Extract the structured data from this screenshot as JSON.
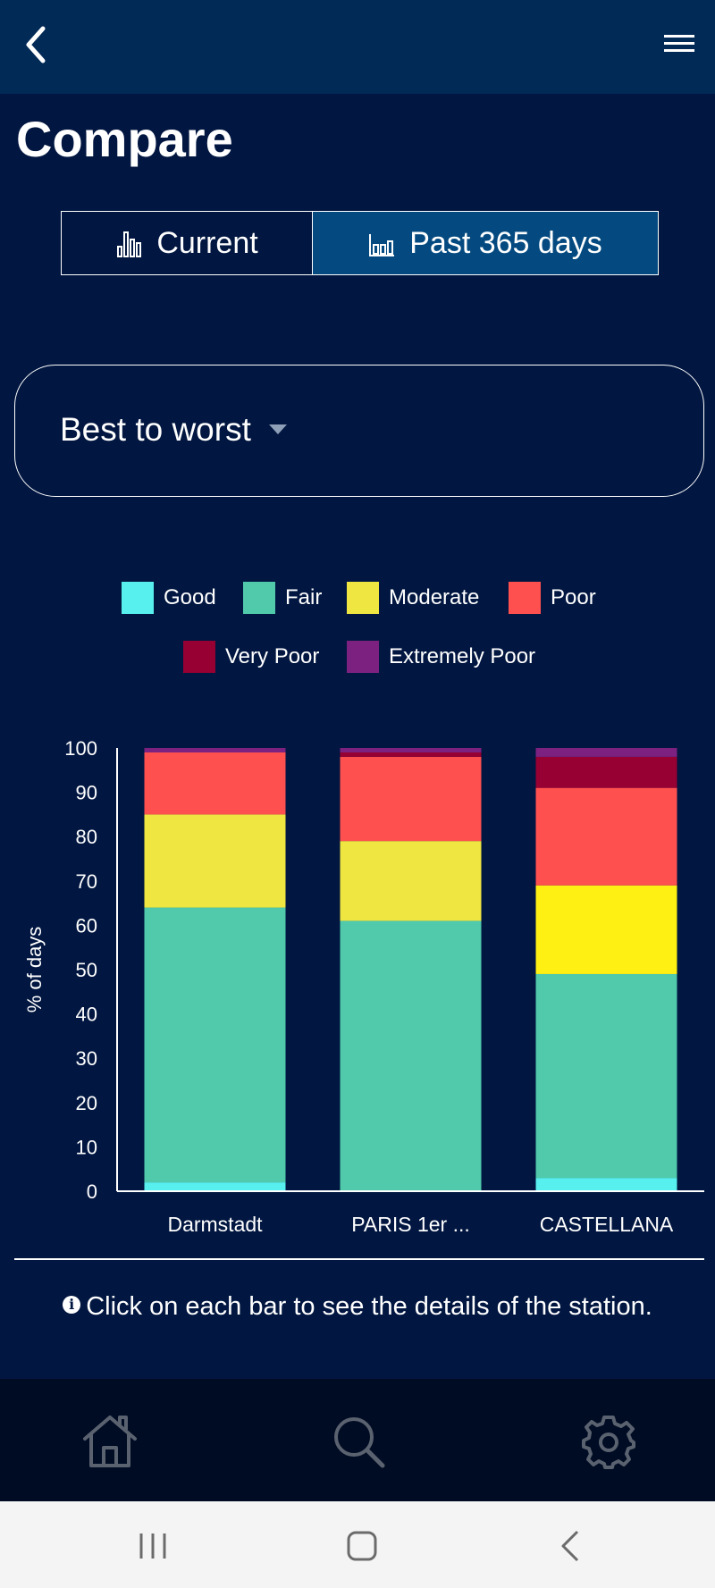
{
  "header": {
    "back_icon": "chevron-left-icon",
    "menu_icon": "hamburger-icon"
  },
  "page": {
    "title": "Compare"
  },
  "segmented_control": {
    "tabs": [
      {
        "label": "Current",
        "icon": "bar-chart-icon",
        "selected": false
      },
      {
        "label": "Past 365 days",
        "icon": "bar-chart-outline-icon",
        "selected": true
      }
    ]
  },
  "sort_dropdown": {
    "selected": "Best to worst"
  },
  "legend": [
    {
      "label": "Good",
      "color": "#58f0ee"
    },
    {
      "label": "Fair",
      "color": "#50caab"
    },
    {
      "label": "Moderate",
      "color": "#f0e641"
    },
    {
      "label": "Poor",
      "color": "#ff5050"
    },
    {
      "label": "Very Poor",
      "color": "#960032"
    },
    {
      "label": "Extremely Poor",
      "color": "#7d2181"
    }
  ],
  "chart_data": {
    "type": "bar",
    "stacked": true,
    "categories": [
      "Darmstadt",
      "PARIS 1er ...",
      "CASTELLANA"
    ],
    "ylabel": "% of days",
    "ylim": [
      0,
      100
    ],
    "yticks": [
      0,
      10,
      20,
      30,
      40,
      50,
      60,
      70,
      80,
      90,
      100
    ],
    "grid": false,
    "legend_position": "top",
    "series": [
      {
        "name": "Good",
        "color": "#58f0ee",
        "values": [
          2,
          0,
          3
        ]
      },
      {
        "name": "Fair",
        "color": "#50caab",
        "values": [
          62,
          61,
          46
        ]
      },
      {
        "name": "Moderate",
        "color": "#f0e641",
        "values": [
          21,
          18,
          20
        ]
      },
      {
        "name": "Poor",
        "color": "#ff5050",
        "values": [
          14,
          19,
          22
        ]
      },
      {
        "name": "Very Poor",
        "color": "#960032",
        "values": [
          0,
          1,
          7
        ]
      },
      {
        "name": "Extremely Poor",
        "color": "#7d2181",
        "values": [
          1,
          1,
          2
        ]
      }
    ],
    "bar_colors_override": {
      "CASTELLANA": {
        "Moderate": "#fff014"
      }
    }
  },
  "hint": {
    "icon": "info-icon",
    "text": "Click on each bar to see the details of the station."
  },
  "bottom_nav": [
    {
      "icon": "home-icon"
    },
    {
      "icon": "search-icon"
    },
    {
      "icon": "gear-icon"
    }
  ],
  "system_nav": [
    {
      "icon": "recent-apps-icon"
    },
    {
      "icon": "home-square-icon"
    },
    {
      "icon": "system-back-icon"
    }
  ]
}
